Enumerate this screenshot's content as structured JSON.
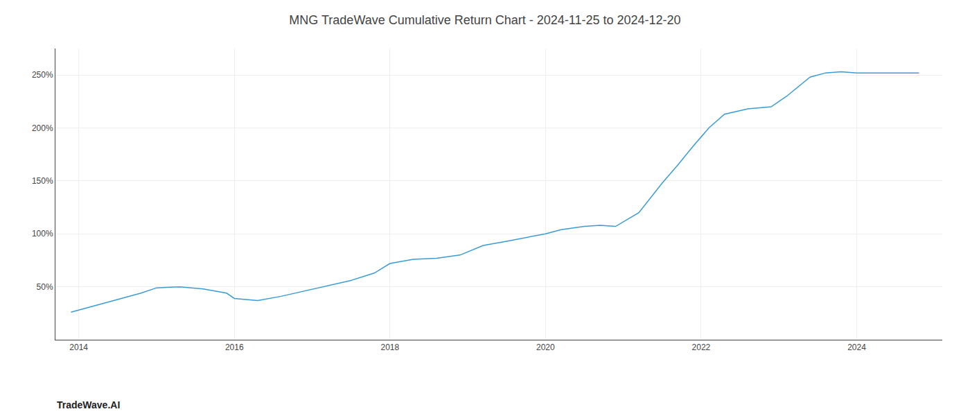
{
  "chart_data": {
    "type": "line",
    "title": "MNG TradeWave Cumulative Return Chart - 2024-11-25 to 2024-12-20",
    "annotations": [
      "TradeWave.AI"
    ],
    "x": [
      2013.9,
      2014.2,
      2014.5,
      2014.8,
      2015.0,
      2015.3,
      2015.6,
      2015.9,
      2016.0,
      2016.3,
      2016.6,
      2016.9,
      2017.2,
      2017.5,
      2017.8,
      2018.0,
      2018.3,
      2018.6,
      2018.9,
      2019.2,
      2019.5,
      2019.8,
      2020.0,
      2020.2,
      2020.5,
      2020.7,
      2020.9,
      2021.2,
      2021.5,
      2021.7,
      2021.9,
      2022.1,
      2022.3,
      2022.6,
      2022.9,
      2023.1,
      2023.4,
      2023.6,
      2023.8,
      2024.0,
      2024.2,
      2024.5,
      2024.8
    ],
    "values": [
      26,
      32,
      38,
      44,
      49,
      50,
      48,
      44,
      39,
      37,
      41,
      46,
      51,
      56,
      63,
      72,
      76,
      77,
      80,
      89,
      93,
      97,
      100,
      104,
      107,
      108,
      107,
      120,
      148,
      165,
      183,
      200,
      213,
      218,
      220,
      230,
      248,
      252,
      253,
      252,
      252,
      252,
      252
    ],
    "color": "#3a9bd5",
    "xlim": [
      2013.7,
      2025.1
    ],
    "ylim": [
      0,
      275
    ],
    "xticks": [
      2014,
      2016,
      2018,
      2020,
      2022,
      2024
    ],
    "yticks": [
      {
        "value": 50,
        "label": "50%"
      },
      {
        "value": 100,
        "label": "100%"
      },
      {
        "value": 150,
        "label": "150%"
      },
      {
        "value": 200,
        "label": "200%"
      },
      {
        "value": 250,
        "label": "250%"
      }
    ],
    "grid": true
  }
}
